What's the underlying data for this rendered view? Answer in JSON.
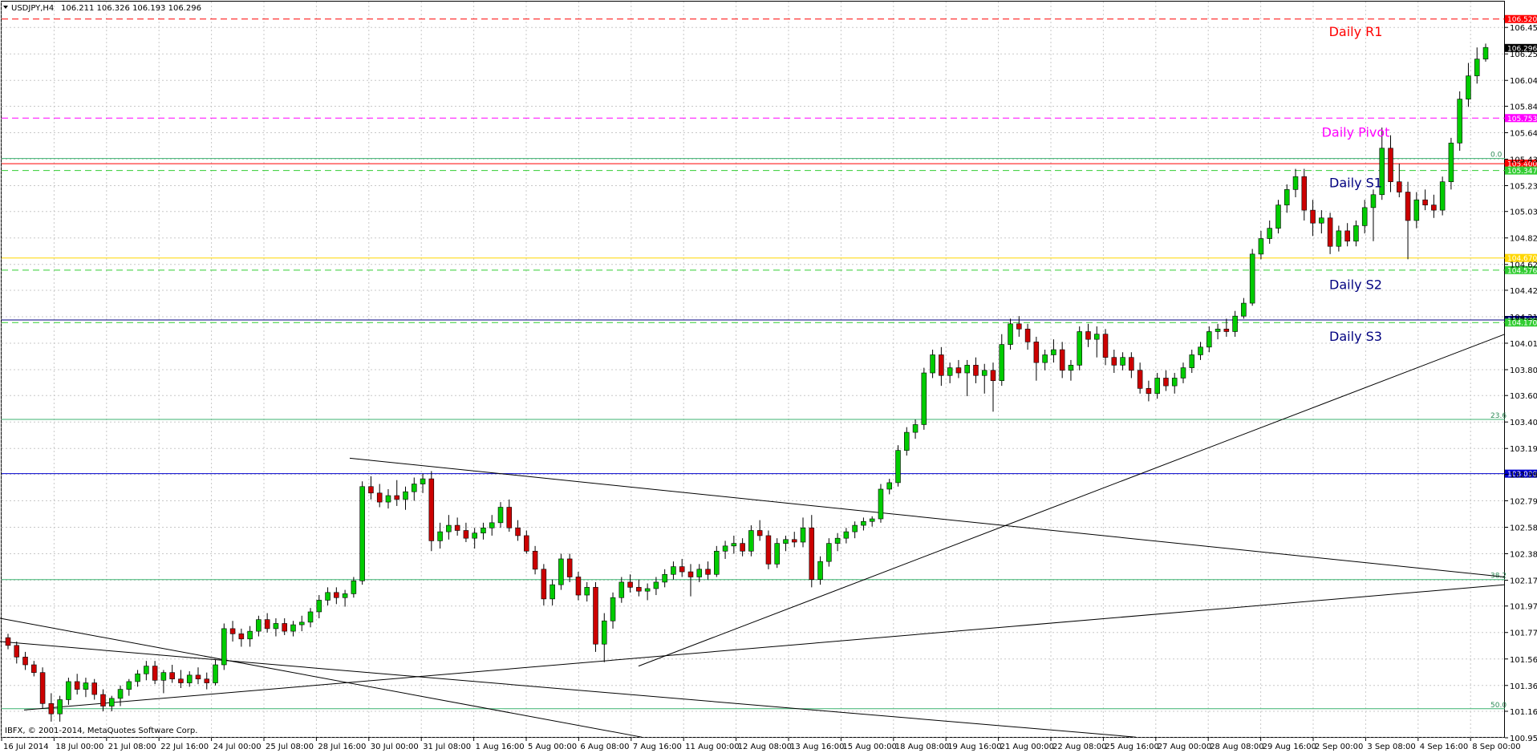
{
  "header": {
    "symbol": "USDJPY,H4",
    "ohlc": "106.211 106.326 106.193 106.296"
  },
  "copyright": "IBFX, © 2001-2014, MetaQuotes Software Corp.",
  "chart_data": {
    "type": "candlestick",
    "ylim": [
      100.955,
      106.655
    ],
    "y_ticks": [
      "106.455",
      "106.250",
      "106.045",
      "105.845",
      "105.640",
      "105.435",
      "105.230",
      "105.030",
      "104.825",
      "104.620",
      "104.420",
      "104.215",
      "104.010",
      "103.805",
      "103.605",
      "103.400",
      "103.195",
      "102.995",
      "102.790",
      "102.585",
      "102.380",
      "102.175",
      "101.975",
      "101.770",
      "101.565",
      "101.360",
      "101.160",
      "100.955"
    ],
    "x_ticks": [
      "16 Jul 2014",
      "18 Jul 00:00",
      "21 Jul 08:00",
      "22 Jul 16:00",
      "24 Jul 00:00",
      "25 Jul 08:00",
      "28 Jul 16:00",
      "30 Jul 00:00",
      "31 Jul 08:00",
      "1 Aug 16:00",
      "5 Aug 00:00",
      "6 Aug 08:00",
      "7 Aug 16:00",
      "11 Aug 00:00",
      "12 Aug 08:00",
      "13 Aug 16:00",
      "15 Aug 00:00",
      "18 Aug 08:00",
      "19 Aug 16:00",
      "21 Aug 00:00",
      "22 Aug 08:00",
      "25 Aug 16:00",
      "27 Aug 00:00",
      "28 Aug 08:00",
      "29 Aug 16:00",
      "2 Sep 00:00",
      "3 Sep 08:00",
      "4 Sep 16:00",
      "8 Sep 00:00"
    ],
    "bull_color": "#00cc00",
    "bear_color": "#cc0000",
    "candles": [
      [
        101.73,
        101.76,
        101.64,
        101.67
      ],
      [
        101.67,
        101.7,
        101.53,
        101.58
      ],
      [
        101.58,
        101.62,
        101.48,
        101.52
      ],
      [
        101.52,
        101.55,
        101.43,
        101.46
      ],
      [
        101.46,
        101.5,
        101.18,
        101.22
      ],
      [
        101.22,
        101.3,
        101.08,
        101.14
      ],
      [
        101.14,
        101.28,
        101.08,
        101.25
      ],
      [
        101.25,
        101.42,
        101.21,
        101.39
      ],
      [
        101.39,
        101.45,
        101.29,
        101.33
      ],
      [
        101.33,
        101.42,
        101.27,
        101.38
      ],
      [
        101.38,
        101.41,
        101.25,
        101.29
      ],
      [
        101.29,
        101.33,
        101.16,
        101.2
      ],
      [
        101.2,
        101.28,
        101.16,
        101.26
      ],
      [
        101.26,
        101.36,
        101.2,
        101.33
      ],
      [
        101.33,
        101.41,
        101.28,
        101.39
      ],
      [
        101.39,
        101.48,
        101.35,
        101.45
      ],
      [
        101.45,
        101.55,
        101.4,
        101.51
      ],
      [
        101.51,
        101.55,
        101.37,
        101.4
      ],
      [
        101.4,
        101.48,
        101.3,
        101.46
      ],
      [
        101.46,
        101.52,
        101.38,
        101.41
      ],
      [
        101.41,
        101.48,
        101.34,
        101.38
      ],
      [
        101.38,
        101.47,
        101.35,
        101.44
      ],
      [
        101.44,
        101.5,
        101.37,
        101.41
      ],
      [
        101.41,
        101.46,
        101.33,
        101.38
      ],
      [
        101.38,
        101.56,
        101.36,
        101.52
      ],
      [
        101.52,
        101.84,
        101.48,
        101.8
      ],
      [
        101.8,
        101.86,
        101.7,
        101.76
      ],
      [
        101.76,
        101.8,
        101.66,
        101.72
      ],
      [
        101.72,
        101.82,
        101.66,
        101.78
      ],
      [
        101.78,
        101.9,
        101.74,
        101.87
      ],
      [
        101.87,
        101.92,
        101.77,
        101.8
      ],
      [
        101.8,
        101.88,
        101.74,
        101.84
      ],
      [
        101.84,
        101.88,
        101.75,
        101.78
      ],
      [
        101.78,
        101.86,
        101.74,
        101.83
      ],
      [
        101.83,
        101.9,
        101.78,
        101.85
      ],
      [
        101.85,
        101.96,
        101.81,
        101.93
      ],
      [
        101.93,
        102.06,
        101.88,
        102.02
      ],
      [
        102.02,
        102.12,
        101.98,
        102.08
      ],
      [
        102.08,
        102.12,
        101.99,
        102.04
      ],
      [
        102.04,
        102.1,
        101.97,
        102.07
      ],
      [
        102.07,
        102.2,
        102.04,
        102.17
      ],
      [
        102.17,
        102.94,
        102.14,
        102.9
      ],
      [
        102.9,
        102.98,
        102.8,
        102.85
      ],
      [
        102.85,
        102.92,
        102.74,
        102.78
      ],
      [
        102.78,
        102.88,
        102.73,
        102.83
      ],
      [
        102.83,
        102.95,
        102.75,
        102.8
      ],
      [
        102.8,
        102.9,
        102.72,
        102.86
      ],
      [
        102.86,
        102.97,
        102.79,
        102.92
      ],
      [
        102.92,
        103.0,
        102.85,
        102.96
      ],
      [
        102.96,
        103.02,
        102.4,
        102.48
      ],
      [
        102.48,
        102.62,
        102.42,
        102.55
      ],
      [
        102.55,
        102.68,
        102.49,
        102.6
      ],
      [
        102.6,
        102.66,
        102.52,
        102.56
      ],
      [
        102.56,
        102.62,
        102.47,
        102.5
      ],
      [
        102.5,
        102.58,
        102.42,
        102.54
      ],
      [
        102.54,
        102.62,
        102.49,
        102.58
      ],
      [
        102.58,
        102.68,
        102.52,
        102.62
      ],
      [
        102.62,
        102.78,
        102.58,
        102.74
      ],
      [
        102.74,
        102.8,
        102.55,
        102.58
      ],
      [
        102.58,
        102.64,
        102.48,
        102.52
      ],
      [
        102.52,
        102.56,
        102.38,
        102.4
      ],
      [
        102.4,
        102.44,
        102.22,
        102.26
      ],
      [
        102.26,
        102.3,
        101.98,
        102.03
      ],
      [
        102.03,
        102.18,
        101.98,
        102.14
      ],
      [
        102.14,
        102.38,
        102.1,
        102.34
      ],
      [
        102.34,
        102.38,
        102.16,
        102.2
      ],
      [
        102.2,
        102.24,
        102.02,
        102.06
      ],
      [
        102.06,
        102.16,
        102.01,
        102.12
      ],
      [
        102.12,
        102.16,
        101.62,
        101.68
      ],
      [
        101.68,
        101.92,
        101.54,
        101.86
      ],
      [
        101.86,
        102.08,
        101.8,
        102.04
      ],
      [
        102.04,
        102.2,
        102.0,
        102.16
      ],
      [
        102.16,
        102.22,
        102.08,
        102.12
      ],
      [
        102.12,
        102.18,
        102.05,
        102.09
      ],
      [
        102.09,
        102.15,
        102.02,
        102.11
      ],
      [
        102.11,
        102.2,
        102.06,
        102.16
      ],
      [
        102.16,
        102.26,
        102.12,
        102.22
      ],
      [
        102.22,
        102.32,
        102.18,
        102.28
      ],
      [
        102.28,
        102.34,
        102.2,
        102.24
      ],
      [
        102.24,
        102.3,
        102.05,
        102.2
      ],
      [
        102.2,
        102.3,
        102.16,
        102.26
      ],
      [
        102.26,
        102.32,
        102.18,
        102.22
      ],
      [
        102.22,
        102.44,
        102.2,
        102.4
      ],
      [
        102.4,
        102.48,
        102.34,
        102.44
      ],
      [
        102.44,
        102.52,
        102.38,
        102.46
      ],
      [
        102.46,
        102.5,
        102.36,
        102.4
      ],
      [
        102.4,
        102.6,
        102.36,
        102.56
      ],
      [
        102.56,
        102.64,
        102.48,
        102.52
      ],
      [
        102.52,
        102.56,
        102.26,
        102.3
      ],
      [
        102.3,
        102.5,
        102.27,
        102.46
      ],
      [
        102.46,
        102.52,
        102.4,
        102.49
      ],
      [
        102.49,
        102.55,
        102.43,
        102.47
      ],
      [
        102.47,
        102.66,
        102.43,
        102.58
      ],
      [
        102.58,
        102.68,
        102.12,
        102.18
      ],
      [
        102.18,
        102.36,
        102.14,
        102.32
      ],
      [
        102.32,
        102.5,
        102.28,
        102.46
      ],
      [
        102.46,
        102.54,
        102.4,
        102.5
      ],
      [
        102.5,
        102.58,
        102.46,
        102.55
      ],
      [
        102.55,
        102.63,
        102.5,
        102.6
      ],
      [
        102.6,
        102.66,
        102.56,
        102.63
      ],
      [
        102.63,
        102.67,
        102.59,
        102.65
      ],
      [
        102.65,
        102.92,
        102.62,
        102.88
      ],
      [
        102.88,
        102.96,
        102.84,
        102.93
      ],
      [
        102.93,
        103.22,
        102.9,
        103.18
      ],
      [
        103.18,
        103.36,
        103.14,
        103.32
      ],
      [
        103.32,
        103.42,
        103.27,
        103.38
      ],
      [
        103.38,
        103.82,
        103.34,
        103.78
      ],
      [
        103.78,
        103.96,
        103.74,
        103.92
      ],
      [
        103.92,
        103.98,
        103.68,
        103.76
      ],
      [
        103.76,
        103.86,
        103.7,
        103.82
      ],
      [
        103.82,
        103.88,
        103.74,
        103.78
      ],
      [
        103.78,
        103.88,
        103.6,
        103.84
      ],
      [
        103.84,
        103.9,
        103.7,
        103.76
      ],
      [
        103.76,
        103.85,
        103.62,
        103.8
      ],
      [
        103.8,
        103.86,
        103.48,
        103.72
      ],
      [
        103.72,
        104.08,
        103.68,
        104.0
      ],
      [
        104.0,
        104.2,
        103.96,
        104.16
      ],
      [
        104.16,
        104.22,
        104.06,
        104.12
      ],
      [
        104.12,
        104.16,
        103.96,
        104.02
      ],
      [
        104.02,
        104.06,
        103.72,
        103.86
      ],
      [
        103.86,
        103.96,
        103.8,
        103.92
      ],
      [
        103.92,
        104.04,
        103.86,
        103.96
      ],
      [
        103.96,
        104.02,
        103.74,
        103.8
      ],
      [
        103.8,
        103.88,
        103.72,
        103.84
      ],
      [
        103.84,
        104.14,
        103.8,
        104.1
      ],
      [
        104.1,
        104.16,
        103.98,
        104.04
      ],
      [
        104.04,
        104.14,
        103.9,
        104.08
      ],
      [
        104.08,
        104.12,
        103.84,
        103.9
      ],
      [
        103.9,
        103.96,
        103.78,
        103.84
      ],
      [
        103.84,
        103.94,
        103.8,
        103.9
      ],
      [
        103.9,
        103.94,
        103.74,
        103.8
      ],
      [
        103.8,
        103.86,
        103.62,
        103.66
      ],
      [
        103.66,
        103.72,
        103.56,
        103.62
      ],
      [
        103.62,
        103.78,
        103.58,
        103.74
      ],
      [
        103.74,
        103.8,
        103.64,
        103.68
      ],
      [
        103.68,
        103.78,
        103.62,
        103.74
      ],
      [
        103.74,
        103.86,
        103.7,
        103.82
      ],
      [
        103.82,
        103.96,
        103.78,
        103.92
      ],
      [
        103.92,
        104.02,
        103.88,
        103.98
      ],
      [
        103.98,
        104.14,
        103.94,
        104.1
      ],
      [
        104.1,
        104.16,
        104.04,
        104.12
      ],
      [
        104.12,
        104.2,
        104.06,
        104.1
      ],
      [
        104.1,
        104.26,
        104.06,
        104.22
      ],
      [
        104.22,
        104.36,
        104.2,
        104.32
      ],
      [
        104.32,
        104.74,
        104.3,
        104.7
      ],
      [
        104.7,
        104.88,
        104.66,
        104.82
      ],
      [
        104.82,
        104.96,
        104.78,
        104.9
      ],
      [
        104.9,
        105.12,
        104.86,
        105.08
      ],
      [
        105.08,
        105.24,
        105.02,
        105.2
      ],
      [
        105.2,
        105.36,
        105.14,
        105.3
      ],
      [
        105.3,
        105.36,
        104.96,
        105.04
      ],
      [
        105.04,
        105.12,
        104.84,
        104.94
      ],
      [
        104.94,
        105.04,
        104.86,
        104.98
      ],
      [
        104.98,
        105.02,
        104.7,
        104.76
      ],
      [
        104.76,
        104.92,
        104.72,
        104.88
      ],
      [
        104.88,
        104.94,
        104.76,
        104.8
      ],
      [
        104.8,
        104.96,
        104.76,
        104.92
      ],
      [
        104.92,
        105.12,
        104.86,
        105.06
      ],
      [
        105.06,
        105.2,
        104.8,
        105.16
      ],
      [
        105.16,
        105.68,
        105.12,
        105.52
      ],
      [
        105.52,
        105.62,
        105.18,
        105.26
      ],
      [
        105.26,
        105.4,
        105.14,
        105.18
      ],
      [
        105.18,
        105.26,
        104.66,
        104.96
      ],
      [
        104.96,
        105.18,
        104.9,
        105.12
      ],
      [
        105.12,
        105.2,
        105.04,
        105.08
      ],
      [
        105.08,
        105.16,
        104.98,
        105.04
      ],
      [
        105.04,
        105.3,
        105.0,
        105.26
      ],
      [
        105.26,
        105.6,
        105.2,
        105.56
      ],
      [
        105.56,
        105.96,
        105.5,
        105.9
      ],
      [
        105.9,
        106.18,
        105.84,
        106.08
      ],
      [
        106.08,
        106.3,
        106.02,
        106.21
      ],
      [
        106.21,
        106.33,
        106.19,
        106.3
      ]
    ],
    "horizontal_levels": [
      {
        "price": 106.52,
        "label": "106.520",
        "color": "#ff0000",
        "dash": true
      },
      {
        "price": 105.753,
        "label": "105.753",
        "color": "#ff00ff",
        "dash": true
      },
      {
        "price": 105.4,
        "label": "105.400",
        "color": "#ff0000",
        "dash": false
      },
      {
        "price": 105.347,
        "label": "105.347",
        "color": "#32cd32",
        "dash": true
      },
      {
        "price": 104.67,
        "label": "104.670",
        "color": "#ffd700",
        "dash": false
      },
      {
        "price": 104.576,
        "label": "104.576",
        "color": "#32cd32",
        "dash": true
      },
      {
        "price": 104.19,
        "label": "104.190",
        "color": "#000080",
        "dash": false
      },
      {
        "price": 104.17,
        "label": "104.170",
        "color": "#32cd32",
        "dash": true
      },
      {
        "price": 103.0,
        "label": "103.000",
        "color": "#0000cd",
        "dash": false
      }
    ],
    "current_price": {
      "price": 106.296,
      "label": "106.296"
    },
    "pivot_labels": [
      {
        "text": "Daily R1",
        "price": 106.42,
        "color": "#ff0000"
      },
      {
        "text": "Daily Pivot",
        "price": 105.64,
        "color": "#ff00ff"
      },
      {
        "text": "Daily S1",
        "price": 105.25,
        "color": "#000080"
      },
      {
        "text": "Daily S2",
        "price": 104.46,
        "color": "#000080"
      },
      {
        "text": "Daily S3",
        "price": 104.06,
        "color": "#000080"
      }
    ],
    "fib_levels": [
      {
        "price": 105.44,
        "label": "0.0"
      },
      {
        "price": 103.42,
        "label": "23.6"
      },
      {
        "price": 102.18,
        "label": "38.2"
      },
      {
        "price": 101.18,
        "label": "50.0"
      }
    ],
    "trendlines": [
      {
        "x1": 0,
        "y1": 101.88,
        "x2": 800,
        "y2": 100.96
      },
      {
        "x1": 0,
        "y1": 101.7,
        "x2": 1416,
        "y2": 100.96
      },
      {
        "x1": 30,
        "y1": 101.17,
        "x2": 1876,
        "y2": 102.14
      },
      {
        "x1": 796,
        "y1": 101.51,
        "x2": 1876,
        "y2": 104.08
      },
      {
        "x1": 436,
        "y1": 103.12,
        "x2": 1876,
        "y2": 102.2
      }
    ]
  }
}
